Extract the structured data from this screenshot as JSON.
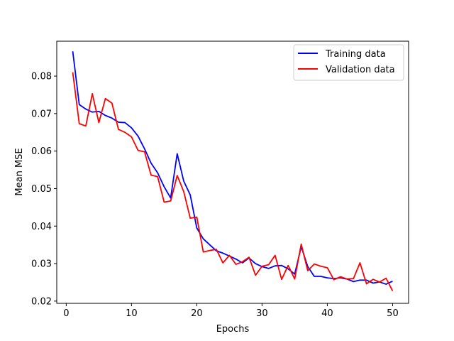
{
  "chart_data": {
    "type": "line",
    "title": "",
    "xlabel": "Epochs",
    "ylabel": "Mean MSE",
    "xlim": [
      -1.45,
      52.45
    ],
    "ylim": [
      0.0194,
      0.0893
    ],
    "xticks": [
      0,
      10,
      20,
      30,
      40,
      50
    ],
    "yticks": [
      0.02,
      0.03,
      0.04,
      0.05,
      0.06,
      0.07,
      0.08
    ],
    "xtick_labels": [
      "0",
      "10",
      "20",
      "30",
      "40",
      "50"
    ],
    "ytick_labels": [
      "0.02",
      "0.03",
      "0.04",
      "0.05",
      "0.06",
      "0.07",
      "0.08"
    ],
    "grid": false,
    "legend": "upper right",
    "x": [
      1,
      2,
      3,
      4,
      5,
      6,
      7,
      8,
      9,
      10,
      11,
      12,
      13,
      14,
      15,
      16,
      17,
      18,
      19,
      20,
      21,
      22,
      23,
      24,
      25,
      26,
      27,
      28,
      29,
      30,
      31,
      32,
      33,
      34,
      35,
      36,
      37,
      38,
      39,
      40,
      41,
      42,
      43,
      44,
      45,
      46,
      47,
      48,
      49,
      50
    ],
    "series": [
      {
        "name": "Training data",
        "color": "#0000ff",
        "values": [
          0.0866,
          0.0724,
          0.0712,
          0.0704,
          0.0706,
          0.0695,
          0.0688,
          0.0677,
          0.0676,
          0.0662,
          0.064,
          0.0606,
          0.0568,
          0.0542,
          0.0505,
          0.0475,
          0.0593,
          0.052,
          0.0483,
          0.0395,
          0.0366,
          0.035,
          0.0334,
          0.0328,
          0.032,
          0.0312,
          0.0302,
          0.0315,
          0.03,
          0.0292,
          0.0287,
          0.0294,
          0.0295,
          0.0286,
          0.0272,
          0.0345,
          0.0292,
          0.0266,
          0.0266,
          0.0262,
          0.026,
          0.0262,
          0.0259,
          0.0252,
          0.0256,
          0.0256,
          0.0248,
          0.0251,
          0.0245,
          0.0253
        ]
      },
      {
        "name": "Validation data",
        "color": "#ff0000",
        "values": [
          0.081,
          0.0673,
          0.0667,
          0.0753,
          0.0676,
          0.074,
          0.0728,
          0.0658,
          0.065,
          0.0638,
          0.0602,
          0.0598,
          0.0536,
          0.0532,
          0.0464,
          0.0467,
          0.0535,
          0.0492,
          0.0421,
          0.0424,
          0.0331,
          0.0335,
          0.0338,
          0.0302,
          0.0322,
          0.0298,
          0.0305,
          0.0317,
          0.0269,
          0.0293,
          0.0297,
          0.0322,
          0.0258,
          0.0295,
          0.0259,
          0.0352,
          0.0281,
          0.0299,
          0.0293,
          0.0289,
          0.0257,
          0.0265,
          0.0259,
          0.026,
          0.0302,
          0.0246,
          0.0258,
          0.0251,
          0.0261,
          0.0227
        ]
      }
    ]
  }
}
